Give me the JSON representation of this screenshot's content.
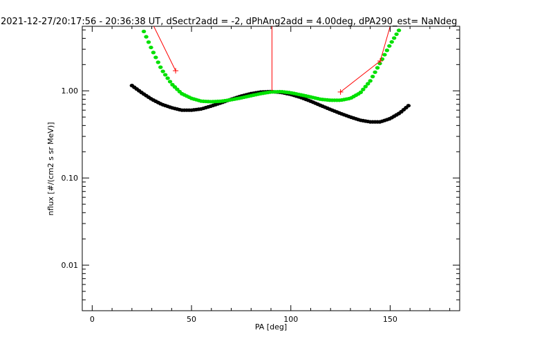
{
  "chart_data": {
    "type": "scatter",
    "title": "2021-12-27/20:17:56 - 20:36:38 UT, dSectr2add = -2, dPhAng2add = 4.00deg, dPA290_est=    NaNdeg",
    "xlabel": "PA [deg]",
    "ylabel": "nflux [#/(cm2 s sr MeV)]",
    "xlim": [
      -5,
      185
    ],
    "ylim": [
      0.003,
      5.5
    ],
    "yscale": "log",
    "grid": false,
    "x_ticks": [
      0,
      50,
      100,
      150
    ],
    "x_tick_labels": [
      "0",
      "50",
      "100",
      "150"
    ],
    "y_ticks": [
      0.01,
      0.1,
      1.0
    ],
    "y_tick_labels": [
      "0.01",
      "0.10",
      "1.00"
    ],
    "series": [
      {
        "color": "#000000",
        "x": [
          20,
          25,
          30,
          35,
          40,
          45,
          50,
          55,
          60,
          65,
          70,
          75,
          80,
          85,
          90,
          95,
          100,
          105,
          110,
          115,
          120,
          125,
          130,
          135,
          140,
          145,
          150,
          155,
          160
        ],
        "y": [
          1.15,
          0.95,
          0.8,
          0.7,
          0.64,
          0.6,
          0.6,
          0.62,
          0.67,
          0.73,
          0.8,
          0.87,
          0.93,
          0.97,
          0.98,
          0.96,
          0.91,
          0.84,
          0.76,
          0.68,
          0.61,
          0.55,
          0.5,
          0.46,
          0.44,
          0.44,
          0.48,
          0.56,
          0.7
        ]
      },
      {
        "color": "#00e000",
        "x": [
          26,
          30,
          35,
          40,
          45,
          50,
          55,
          60,
          65,
          70,
          75,
          80,
          85,
          90,
          95,
          100,
          105,
          110,
          115,
          120,
          125,
          130,
          135,
          140,
          145,
          150,
          155
        ],
        "y": [
          4.8,
          3.0,
          1.75,
          1.2,
          0.93,
          0.82,
          0.76,
          0.75,
          0.76,
          0.79,
          0.83,
          0.88,
          0.93,
          0.97,
          0.98,
          0.95,
          0.9,
          0.85,
          0.8,
          0.78,
          0.78,
          0.82,
          0.95,
          1.3,
          2.1,
          3.4,
          5.2
        ]
      }
    ],
    "annotations": [
      {
        "color": "#ff0000",
        "x": [
          31,
          42
        ],
        "y": [
          5.5,
          1.7
        ],
        "marker_end": true
      },
      {
        "color": "#ff0000",
        "x": [
          90.5,
          90.5
        ],
        "y": [
          5.5,
          1.0
        ],
        "marker_end": false
      },
      {
        "color": "#ff0000",
        "x": [
          125,
          145
        ],
        "y": [
          0.97,
          2.2
        ],
        "marker_start": true,
        "marker_end": true
      },
      {
        "color": "#ff0000",
        "x": [
          145,
          150
        ],
        "y": [
          2.2,
          5.5
        ],
        "marker_start": false,
        "marker_end": false
      }
    ]
  }
}
